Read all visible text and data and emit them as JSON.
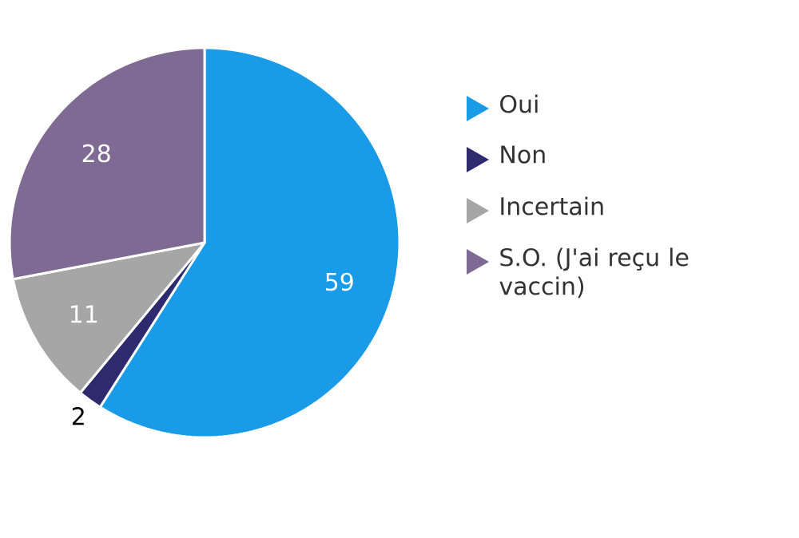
{
  "chart_data": {
    "type": "pie",
    "categories": [
      "Oui",
      "Non",
      "Incertain",
      "S.O. (J'ai reçu le vaccin)"
    ],
    "values": [
      59,
      2,
      11,
      28
    ],
    "colors": [
      "#1a9be8",
      "#2e2a6e",
      "#a6a6a6",
      "#7f6a93"
    ],
    "data_labels": true,
    "legend": "right"
  }
}
